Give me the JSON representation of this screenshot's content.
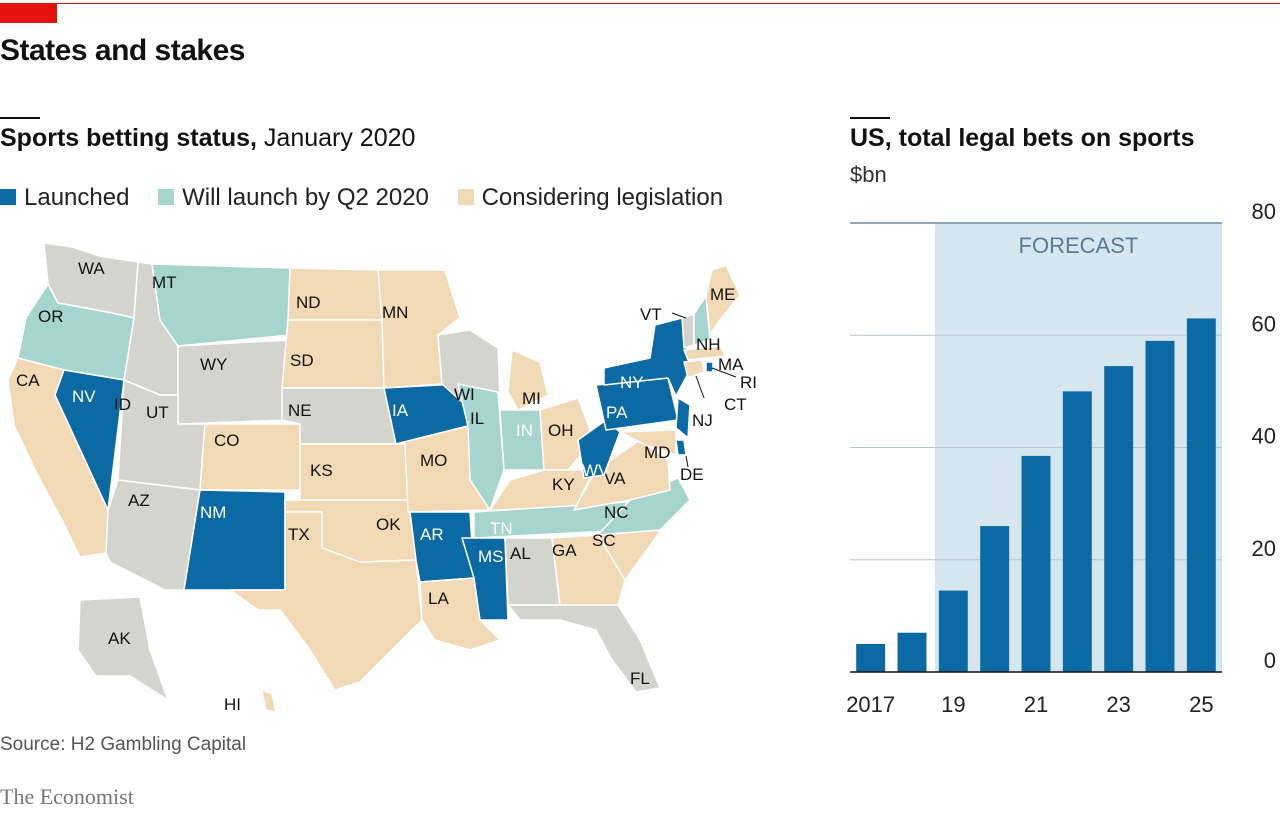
{
  "header": {
    "title": "States and stakes"
  },
  "map": {
    "title_bold": "Sports betting status,",
    "title_light": " January 2020",
    "legend": [
      {
        "label": "Launched",
        "color": "#0b69a3"
      },
      {
        "label": "Will launch by Q2 2020",
        "color": "#a6d4ce"
      },
      {
        "label": "Considering legislation",
        "color": "#f1d9b6"
      }
    ],
    "other_color": "#d4d4cf",
    "states": [
      {
        "abbr": "WA",
        "status": "other"
      },
      {
        "abbr": "OR",
        "status": "soon"
      },
      {
        "abbr": "CA",
        "status": "considering"
      },
      {
        "abbr": "NV",
        "status": "launched"
      },
      {
        "abbr": "ID",
        "status": "other"
      },
      {
        "abbr": "MT",
        "status": "soon"
      },
      {
        "abbr": "WY",
        "status": "other"
      },
      {
        "abbr": "UT",
        "status": "other"
      },
      {
        "abbr": "AZ",
        "status": "other"
      },
      {
        "abbr": "CO",
        "status": "considering"
      },
      {
        "abbr": "NM",
        "status": "launched"
      },
      {
        "abbr": "ND",
        "status": "considering"
      },
      {
        "abbr": "SD",
        "status": "considering"
      },
      {
        "abbr": "NE",
        "status": "other"
      },
      {
        "abbr": "KS",
        "status": "considering"
      },
      {
        "abbr": "OK",
        "status": "considering"
      },
      {
        "abbr": "TX",
        "status": "considering"
      },
      {
        "abbr": "MN",
        "status": "considering"
      },
      {
        "abbr": "IA",
        "status": "launched"
      },
      {
        "abbr": "MO",
        "status": "considering"
      },
      {
        "abbr": "AR",
        "status": "launched"
      },
      {
        "abbr": "LA",
        "status": "considering"
      },
      {
        "abbr": "WI",
        "status": "other"
      },
      {
        "abbr": "IL",
        "status": "soon"
      },
      {
        "abbr": "MI",
        "status": "considering"
      },
      {
        "abbr": "IN",
        "status": "soon"
      },
      {
        "abbr": "OH",
        "status": "considering"
      },
      {
        "abbr": "KY",
        "status": "considering"
      },
      {
        "abbr": "TN",
        "status": "soon"
      },
      {
        "abbr": "MS",
        "status": "launched"
      },
      {
        "abbr": "AL",
        "status": "other"
      },
      {
        "abbr": "GA",
        "status": "considering"
      },
      {
        "abbr": "FL",
        "status": "other"
      },
      {
        "abbr": "SC",
        "status": "considering"
      },
      {
        "abbr": "NC",
        "status": "soon"
      },
      {
        "abbr": "VA",
        "status": "considering"
      },
      {
        "abbr": "WV",
        "status": "launched"
      },
      {
        "abbr": "PA",
        "status": "launched"
      },
      {
        "abbr": "NY",
        "status": "launched"
      },
      {
        "abbr": "NJ",
        "status": "launched"
      },
      {
        "abbr": "DE",
        "status": "launched"
      },
      {
        "abbr": "MD",
        "status": "considering"
      },
      {
        "abbr": "CT",
        "status": "considering"
      },
      {
        "abbr": "RI",
        "status": "launched"
      },
      {
        "abbr": "MA",
        "status": "considering"
      },
      {
        "abbr": "VT",
        "status": "other"
      },
      {
        "abbr": "NH",
        "status": "soon"
      },
      {
        "abbr": "ME",
        "status": "considering"
      },
      {
        "abbr": "AK",
        "status": "other"
      },
      {
        "abbr": "HI",
        "status": "considering"
      }
    ]
  },
  "bets": {
    "title": "US, total legal bets on sports",
    "unit": "$bn"
  },
  "chart_data": {
    "type": "bar",
    "title": "US, total legal bets on sports",
    "ylabel": "$bn",
    "x": [
      2017,
      2018,
      2019,
      2020,
      2021,
      2022,
      2023,
      2024,
      2025
    ],
    "values": [
      5,
      7,
      14.5,
      26,
      38.5,
      50,
      54.5,
      59,
      63
    ],
    "ylim": [
      0,
      80
    ],
    "yticks": [
      0,
      20,
      40,
      60,
      80
    ],
    "xtick_labels": [
      "2017",
      "19",
      "21",
      "23",
      "25"
    ],
    "xtick_index": [
      0,
      2,
      4,
      6,
      8
    ],
    "forecast": {
      "label": "FORECAST",
      "from_index": 2,
      "to_index": 8
    },
    "bar_color": "#0b69a3",
    "grid": true,
    "y_axis_position": "right"
  },
  "footer": {
    "source": "Source: H2 Gambling Capital",
    "brand": "The Economist"
  }
}
